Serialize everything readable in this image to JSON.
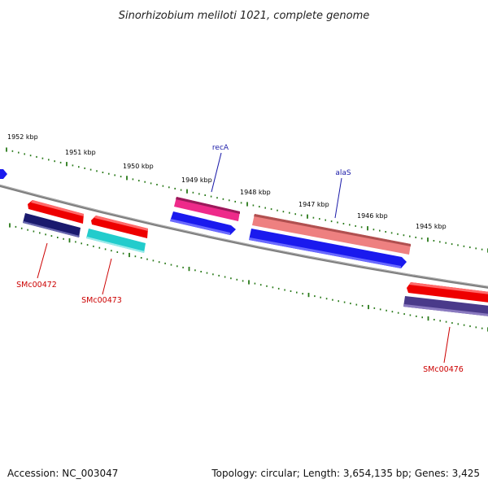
{
  "title": "Sinorhizobium meliloti 1021, complete genome",
  "footer": {
    "accession": "Accession: NC_003047",
    "summary": "Topology: circular; Length: 3,654,135 bp; Genes: 3,425"
  },
  "scale_labels": [
    "1952 kbp",
    "1951 kbp",
    "1950 kbp",
    "1949 kbp",
    "1948 kbp",
    "1947 kbp",
    "1946 kbp",
    "1945 kbp"
  ],
  "gene_labels": {
    "recA": "recA",
    "alaS": "alaS",
    "SMc00472": "SMc00472",
    "SMc00473": "SMc00473",
    "SMc00476": "SMc00476"
  },
  "colors": {
    "backbone": "#808080",
    "ticks": "#2a7a1a",
    "red_feature": "#ee0000",
    "navy_feature": "#1a1a6e",
    "cyan_feature": "#22cccc",
    "magenta_feature": "#ee2a8a",
    "blue_feature": "#1a1aee",
    "salmon_feature": "#ee8080",
    "slate_feature": "#4a3a8a"
  }
}
